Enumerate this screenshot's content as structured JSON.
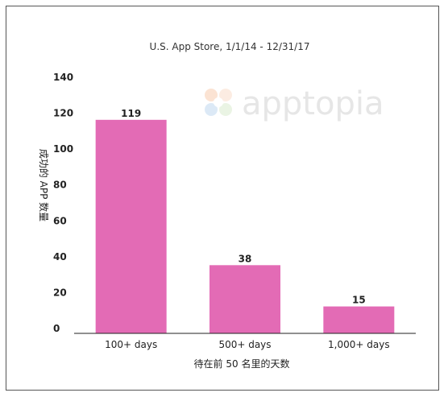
{
  "chart_data": {
    "type": "bar",
    "title": "U.S. App Store, 1/1/14 - 12/31/17",
    "categories": [
      "100+ days",
      "500+ days",
      "1,000+ days"
    ],
    "values": [
      119,
      38,
      15
    ],
    "data_labels": [
      "119",
      "38",
      "15"
    ],
    "xlabel": "待在前 50 名里的天数",
    "ylabel": "成功的 APP 数量",
    "ylim": [
      0,
      140
    ],
    "yticks": [
      0,
      20,
      40,
      60,
      80,
      100,
      120,
      140
    ],
    "grid": false,
    "legend": "none",
    "bar_color": "#e36bb5"
  },
  "watermark": {
    "text": "apptopia"
  }
}
